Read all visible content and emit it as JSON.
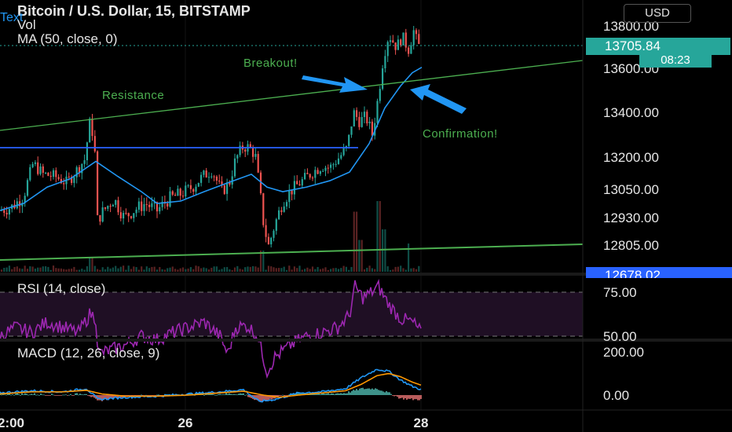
{
  "header": {
    "title": "Bitcoin / U.S. Dollar, 15, BITSTAMP",
    "vol_label": "Vol",
    "ma_label": "MA (50, close, 0)",
    "text_tool_label": "Text",
    "currency": "USD"
  },
  "price_labels": {
    "last_price": "13705.84",
    "countdown": "08:23",
    "low_marker": "12678.02"
  },
  "annotations": {
    "breakout": "Breakout!",
    "resistance": "Resistance",
    "confirmation": "Confirmation!"
  },
  "panes": {
    "rsi_label": "RSI (14, close)",
    "macd_label": "MACD (12, 26, close, 9)"
  },
  "colors": {
    "background": "#000000",
    "up_candle": "#26a69a",
    "down_candle": "#ef5350",
    "ma_line": "#2196f3",
    "trendline": "#4caf50",
    "resistance_line": "#2962ff",
    "rsi_line": "#9c27b0",
    "macd_line": "#2196f3",
    "signal_line": "#ff9800",
    "arrow": "#2196f3"
  },
  "chart_data": [
    {
      "type": "candlestick",
      "title": "Bitcoin / U.S. Dollar, 15, BITSTAMP",
      "y_axis_ticks": [
        "13800.00",
        "13600.00",
        "13400.00",
        "13200.00",
        "13050.00",
        "12930.00",
        "12805.00"
      ],
      "x_axis_ticks": [
        "2:00",
        "26",
        "28"
      ],
      "ylim": [
        12678,
        13800
      ],
      "price_path": [
        [
          0,
          12960
        ],
        [
          15,
          12975
        ],
        [
          30,
          13020
        ],
        [
          42,
          13170
        ],
        [
          55,
          13120
        ],
        [
          70,
          13110
        ],
        [
          85,
          13080
        ],
        [
          98,
          13140
        ],
        [
          108,
          13190
        ],
        [
          114,
          13350
        ],
        [
          120,
          13290
        ],
        [
          124,
          12920
        ],
        [
          132,
          12960
        ],
        [
          145,
          13010
        ],
        [
          158,
          12930
        ],
        [
          170,
          12960
        ],
        [
          185,
          12990
        ],
        [
          200,
          12960
        ],
        [
          215,
          13010
        ],
        [
          230,
          13030
        ],
        [
          245,
          13060
        ],
        [
          258,
          13110
        ],
        [
          270,
          13140
        ],
        [
          282,
          13040
        ],
        [
          292,
          13080
        ],
        [
          300,
          13190
        ],
        [
          310,
          13250
        ],
        [
          318,
          13240
        ],
        [
          325,
          13210
        ],
        [
          330,
          13070
        ],
        [
          336,
          12890
        ],
        [
          342,
          12800
        ],
        [
          350,
          12900
        ],
        [
          360,
          13000
        ],
        [
          372,
          13050
        ],
        [
          385,
          13090
        ],
        [
          398,
          13130
        ],
        [
          410,
          13160
        ],
        [
          420,
          13150
        ],
        [
          432,
          13200
        ],
        [
          442,
          13240
        ],
        [
          450,
          13400
        ],
        [
          458,
          13360
        ],
        [
          466,
          13380
        ],
        [
          474,
          13300
        ],
        [
          482,
          13480
        ],
        [
          488,
          13650
        ],
        [
          495,
          13760
        ],
        [
          505,
          13700
        ],
        [
          512,
          13750
        ],
        [
          520,
          13690
        ],
        [
          527,
          13780
        ],
        [
          532,
          13705
        ]
      ],
      "moving_average_path": [
        [
          0,
          12960
        ],
        [
          30,
          12990
        ],
        [
          60,
          13060
        ],
        [
          90,
          13100
        ],
        [
          122,
          13180
        ],
        [
          150,
          13110
        ],
        [
          180,
          13040
        ],
        [
          200,
          12990
        ],
        [
          230,
          13000
        ],
        [
          260,
          13040
        ],
        [
          290,
          13080
        ],
        [
          320,
          13120
        ],
        [
          340,
          13060
        ],
        [
          360,
          13040
        ],
        [
          390,
          13060
        ],
        [
          420,
          13090
        ],
        [
          445,
          13130
        ],
        [
          470,
          13260
        ],
        [
          490,
          13420
        ],
        [
          510,
          13520
        ],
        [
          525,
          13580
        ],
        [
          537,
          13605
        ]
      ],
      "volume_spikes": [
        [
          115,
          0.2
        ],
        [
          335,
          0.3
        ],
        [
          452,
          0.85
        ],
        [
          458,
          0.45
        ],
        [
          482,
          1.0
        ],
        [
          490,
          0.6
        ],
        [
          520,
          0.4
        ]
      ]
    },
    {
      "type": "line",
      "title": "RSI (14, close)",
      "y_axis_ticks": [
        "75.00",
        "50.00"
      ],
      "ylim": [
        30,
        80
      ],
      "levels": [
        70,
        30
      ],
      "path": [
        [
          0,
          50
        ],
        [
          20,
          55
        ],
        [
          40,
          52
        ],
        [
          60,
          58
        ],
        [
          80,
          55
        ],
        [
          100,
          52
        ],
        [
          115,
          63
        ],
        [
          122,
          60
        ],
        [
          125,
          40
        ],
        [
          140,
          42
        ],
        [
          160,
          45
        ],
        [
          180,
          50
        ],
        [
          200,
          48
        ],
        [
          220,
          52
        ],
        [
          240,
          55
        ],
        [
          260,
          58
        ],
        [
          280,
          50
        ],
        [
          290,
          40
        ],
        [
          300,
          55
        ],
        [
          315,
          56
        ],
        [
          328,
          50
        ],
        [
          340,
          30
        ],
        [
          350,
          38
        ],
        [
          370,
          45
        ],
        [
          390,
          50
        ],
        [
          410,
          52
        ],
        [
          430,
          55
        ],
        [
          445,
          62
        ],
        [
          452,
          78
        ],
        [
          462,
          72
        ],
        [
          470,
          74
        ],
        [
          482,
          78
        ],
        [
          495,
          68
        ],
        [
          510,
          60
        ],
        [
          525,
          58
        ],
        [
          537,
          52
        ]
      ]
    },
    {
      "type": "line",
      "title": "MACD (12, 26, close, 9)",
      "y_axis_ticks": [
        "200.00",
        "0.00"
      ],
      "ylim": [
        -80,
        250
      ],
      "series": [
        {
          "values": [
            [
              0,
              10
            ],
            [
              40,
              20
            ],
            [
              80,
              15
            ],
            [
              110,
              30
            ],
            [
              125,
              -20
            ],
            [
              160,
              -10
            ],
            [
              200,
              -5
            ],
            [
              240,
              5
            ],
            [
              280,
              15
            ],
            [
              310,
              25
            ],
            [
              330,
              -30
            ],
            [
              350,
              -20
            ],
            [
              380,
              10
            ],
            [
              410,
              15
            ],
            [
              440,
              30
            ],
            [
              460,
              80
            ],
            [
              480,
              120
            ],
            [
              495,
              110
            ],
            [
              510,
              70
            ],
            [
              525,
              40
            ],
            [
              537,
              25
            ]
          ]
        },
        {
          "values": [
            [
              0,
              5
            ],
            [
              40,
              15
            ],
            [
              80,
              15
            ],
            [
              110,
              22
            ],
            [
              130,
              5
            ],
            [
              160,
              -5
            ],
            [
              200,
              -5
            ],
            [
              240,
              0
            ],
            [
              280,
              10
            ],
            [
              310,
              18
            ],
            [
              335,
              0
            ],
            [
              355,
              -10
            ],
            [
              380,
              0
            ],
            [
              410,
              10
            ],
            [
              440,
              20
            ],
            [
              460,
              50
            ],
            [
              480,
              90
            ],
            [
              495,
              100
            ],
            [
              510,
              85
            ],
            [
              525,
              60
            ],
            [
              537,
              45
            ]
          ]
        }
      ]
    }
  ]
}
